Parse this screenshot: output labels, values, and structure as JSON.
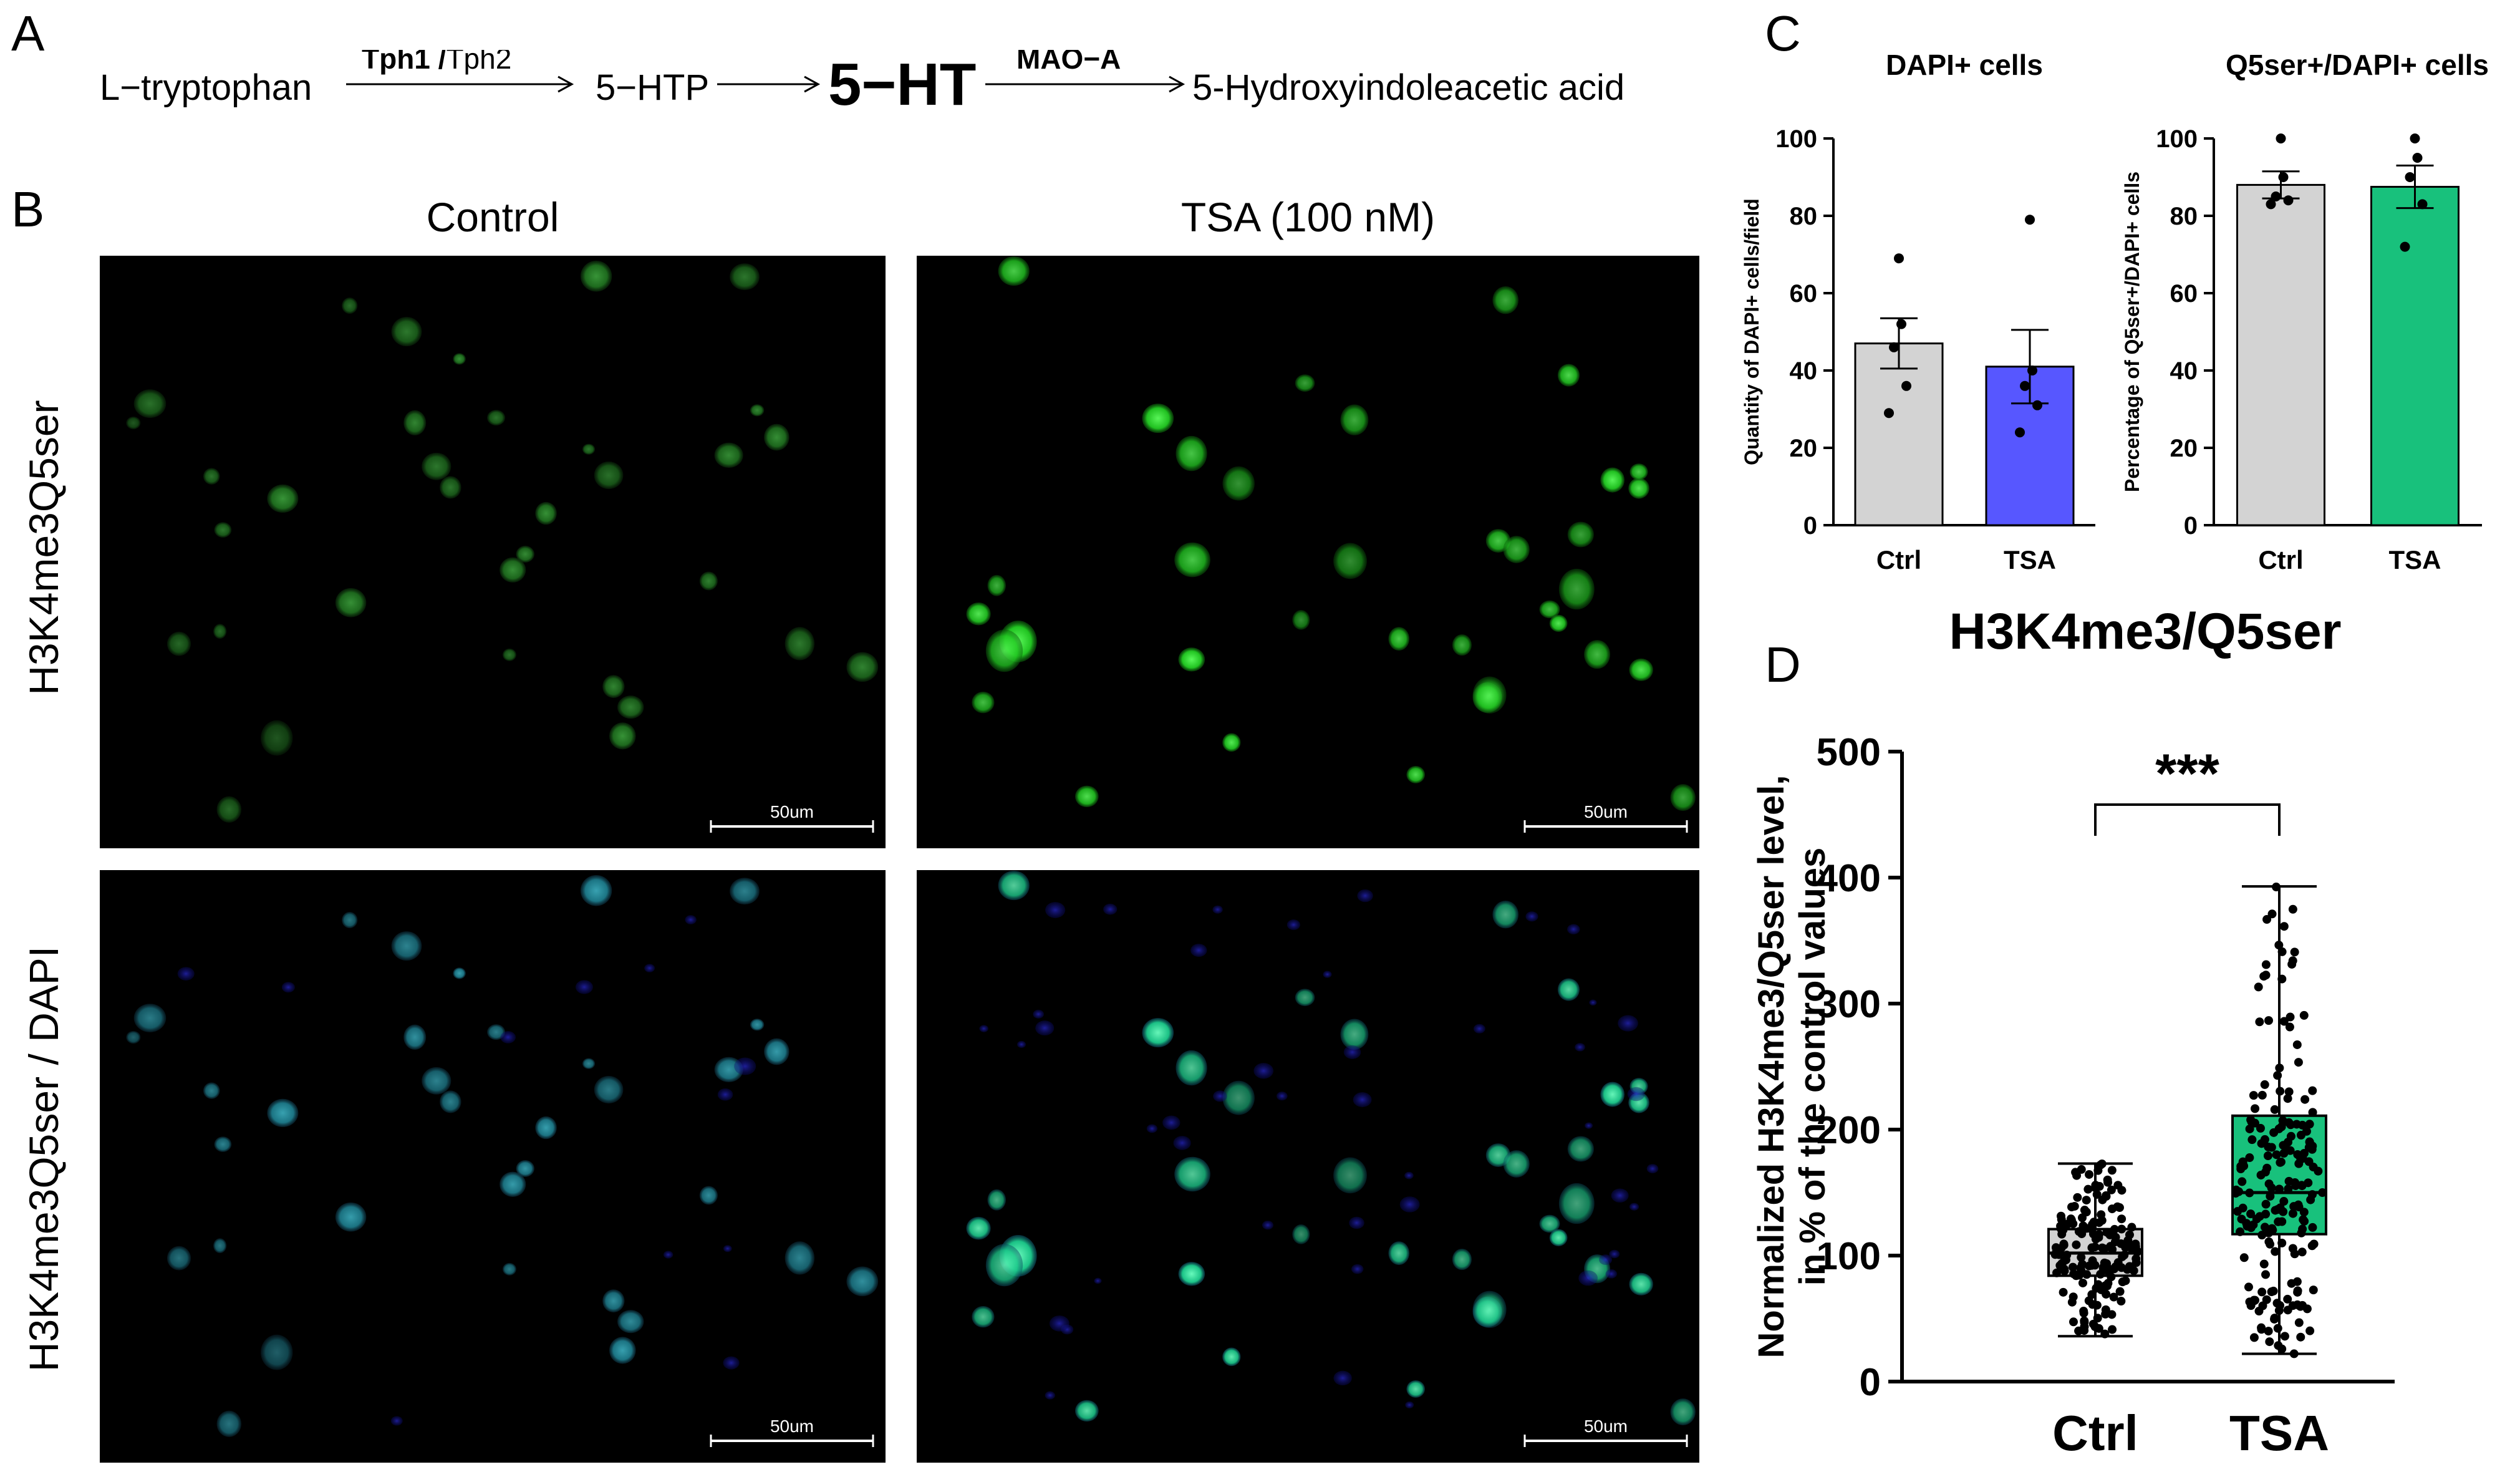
{
  "panels": {
    "a": "A",
    "b": "B",
    "c": "C",
    "d": "D"
  },
  "pathway": {
    "step1": "L−tryptophan",
    "enzyme1_bold": "Tph1",
    "enzyme1_sep": " /",
    "enzyme1_rest": "Tph2",
    "step2": "5−HTP",
    "step3": "5−HT",
    "enzyme2": "MAO−A",
    "step4": "5-Hydroxyindoleacetic acid"
  },
  "microscopy": {
    "col_titles": [
      "Control",
      "TSA (100 nM)"
    ],
    "row_labels": [
      "H3K4me3Q5ser",
      "H3K4me3Q5ser / DAPI"
    ],
    "scale_bar": "50um"
  },
  "chart_data": [
    {
      "type": "bar",
      "title": "DAPI+ cells",
      "xlabel": "",
      "ylabel": "Quantity of DAPI+ cells/field",
      "categories": [
        "Ctrl",
        "TSA"
      ],
      "values": [
        47,
        41
      ],
      "sem": [
        6.5,
        9.5
      ],
      "points": [
        [
          69,
          52,
          46,
          36,
          29
        ],
        [
          79,
          40,
          36,
          31,
          24
        ]
      ],
      "ylim": [
        0,
        100
      ],
      "yticks": [
        0,
        20,
        40,
        60,
        80,
        100
      ],
      "colors": [
        "#d3d3d3",
        "#5757ff"
      ]
    },
    {
      "type": "bar",
      "title": "Q5ser+/DAPI+ cells",
      "xlabel": "",
      "ylabel": "Percentage of Q5ser+/DAPI+ cells",
      "categories": [
        "Ctrl",
        "TSA"
      ],
      "values": [
        88,
        87.5
      ],
      "sem": [
        3.5,
        5.5
      ],
      "points": [
        [
          100,
          90,
          85,
          84,
          83
        ],
        [
          100,
          95,
          90,
          83,
          72
        ]
      ],
      "ylim": [
        0,
        100
      ],
      "yticks": [
        0,
        20,
        40,
        60,
        80,
        100
      ],
      "colors": [
        "#d3d3d3",
        "#18c17c"
      ]
    },
    {
      "type": "box",
      "title": "H3K4me3/Q5ser",
      "xlabel": "",
      "ylabel": "Normalized H3K4me3/Q5ser level, in % of the control values",
      "ylabel_lines": [
        "Normalized H3K4me3/Q5ser level,",
        "in % of the control values"
      ],
      "categories": [
        "Ctrl",
        "TSA"
      ],
      "boxes": [
        {
          "min": 36,
          "q1": 84,
          "median": 102,
          "q3": 121,
          "max": 173
        },
        {
          "min": 22,
          "q1": 117,
          "median": 150,
          "q3": 211,
          "max": 393
        }
      ],
      "ylim": [
        0,
        500
      ],
      "yticks": [
        0,
        100,
        200,
        300,
        400,
        500
      ],
      "colors": [
        "#d3d3d3",
        "#18c17c"
      ],
      "significance": "***"
    }
  ]
}
